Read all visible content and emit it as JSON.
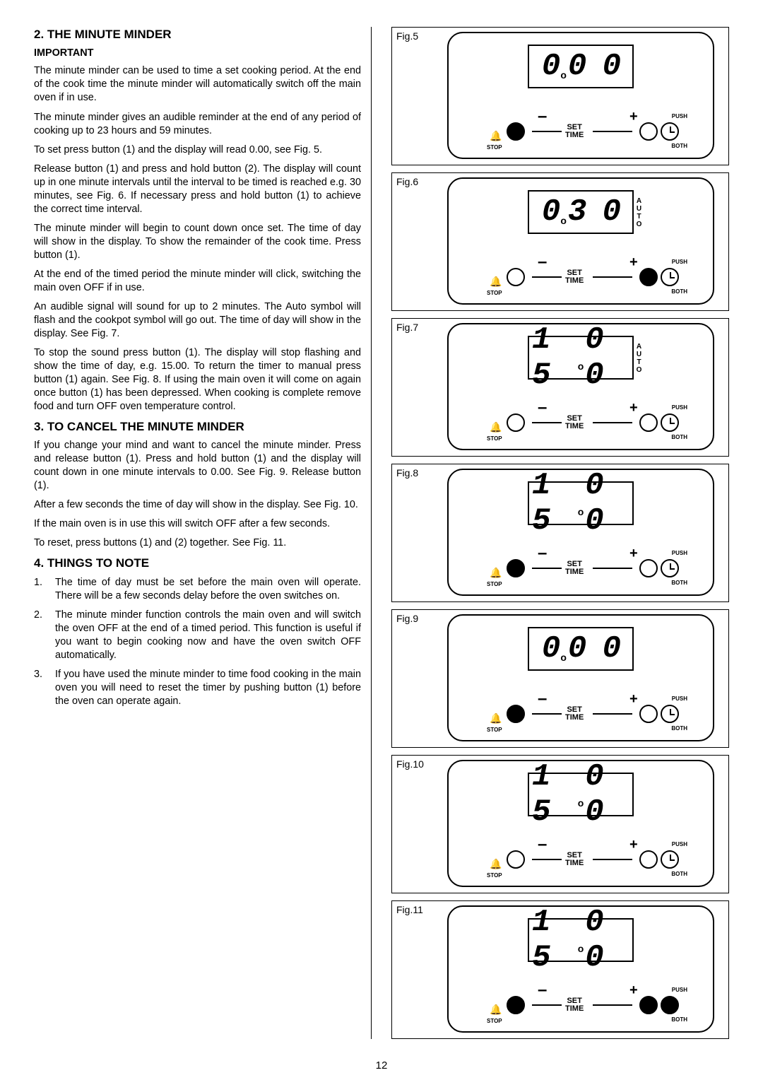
{
  "page_number": "12",
  "left": {
    "h_minute": "2.  THE MINUTE MINDER",
    "important": "IMPORTANT",
    "p1": "The minute minder can be used to time a set cooking period.  At the end of the cook time the minute minder will automatically switch off the main oven if in use.",
    "p2": "The minute minder gives an audible reminder at the end of any period of cooking up to 23 hours and 59 minutes.",
    "p3": "To set press button (1) and the display will read 0.00, see Fig. 5.",
    "p4": "Release button (1) and press and hold button (2). The display will count up in one minute intervals until the interval to be timed is reached e.g. 30 minutes, see Fig. 6.  If necessary press and hold button (1) to achieve the correct time interval.",
    "p5": "The minute minder will begin to count down once set. The time of day will show in the display.  To show the remainder of the cook time.  Press button (1).",
    "p6": "At the end of the timed period the minute minder will click, switching the main oven OFF if in use.",
    "p7": "An audible signal will sound for up to 2 minutes. The Auto symbol will flash and the cookpot symbol will go out.  The time of day will show in the display.  See Fig. 7.",
    "p8": "To stop the sound press button (1).  The display will stop flashing and show the time of day, e.g. 15.00. To return the timer to manual press button (1) again. See Fig. 8.  If using the main oven it will come on again once button (1) has been depressed. When cooking is complete remove food and turn OFF oven temperature control.",
    "h_cancel": "3.  TO CANCEL THE MINUTE MINDER",
    "p9": "If you change your mind and want to cancel the minute minder. Press and release button (1). Press and hold button (1) and the display will count down in one minute intervals to 0.00.  See Fig. 9.  Release button (1).",
    "p10": "After a few seconds the time of day will show in the display.  See Fig. 10.",
    "p11": "If the main oven is in use this will switch OFF after a few seconds.",
    "p12": "To reset, press buttons (1) and (2) together.  See Fig. 11.",
    "h_things": "4.  THINGS TO NOTE",
    "li1n": "1.",
    "li1": "The time of day must be set before the main oven will operate.  There will be a few seconds delay before the oven switches on.",
    "li2n": "2.",
    "li2": "The minute minder function controls the main oven and will switch the oven OFF at the end of a timed period.  This function is useful if you want to begin cooking now and have the oven switch OFF automatically.",
    "li3n": "3.",
    "li3": "If you have used the minute minder to time food cooking in the main oven you will need to reset the timer by pushing button (1) before the oven can operate again."
  },
  "controls": {
    "set": "SET",
    "time": "TIME",
    "push": "PUSH",
    "both": "BOTH",
    "stop": "STOP",
    "minus": "–",
    "plus": "+"
  },
  "figs": [
    {
      "label": "Fig.5",
      "display": "0.00",
      "btn1_filled": true,
      "btn2_filled": false,
      "side": "",
      "clock_filled": false
    },
    {
      "label": "Fig.6",
      "display": "0.30",
      "btn1_filled": false,
      "btn2_filled": true,
      "side": "AUTO",
      "clock_filled": false
    },
    {
      "label": "Fig.7",
      "display": "15.00",
      "btn1_filled": false,
      "btn2_filled": false,
      "side": "AUTO",
      "clock_filled": false
    },
    {
      "label": "Fig.8",
      "display": "15.00",
      "btn1_filled": true,
      "btn2_filled": false,
      "side": "",
      "clock_filled": false
    },
    {
      "label": "Fig.9",
      "display": "0.00",
      "btn1_filled": true,
      "btn2_filled": false,
      "side": "",
      "clock_filled": false
    },
    {
      "label": "Fig.10",
      "display": "15.00",
      "btn1_filled": false,
      "btn2_filled": false,
      "side": "",
      "clock_filled": false
    },
    {
      "label": "Fig.11",
      "display": "15.00",
      "btn1_filled": true,
      "btn2_filled": true,
      "side": "",
      "clock_filled": true
    }
  ],
  "colors": {
    "fg": "#000000",
    "bg": "#ffffff"
  }
}
